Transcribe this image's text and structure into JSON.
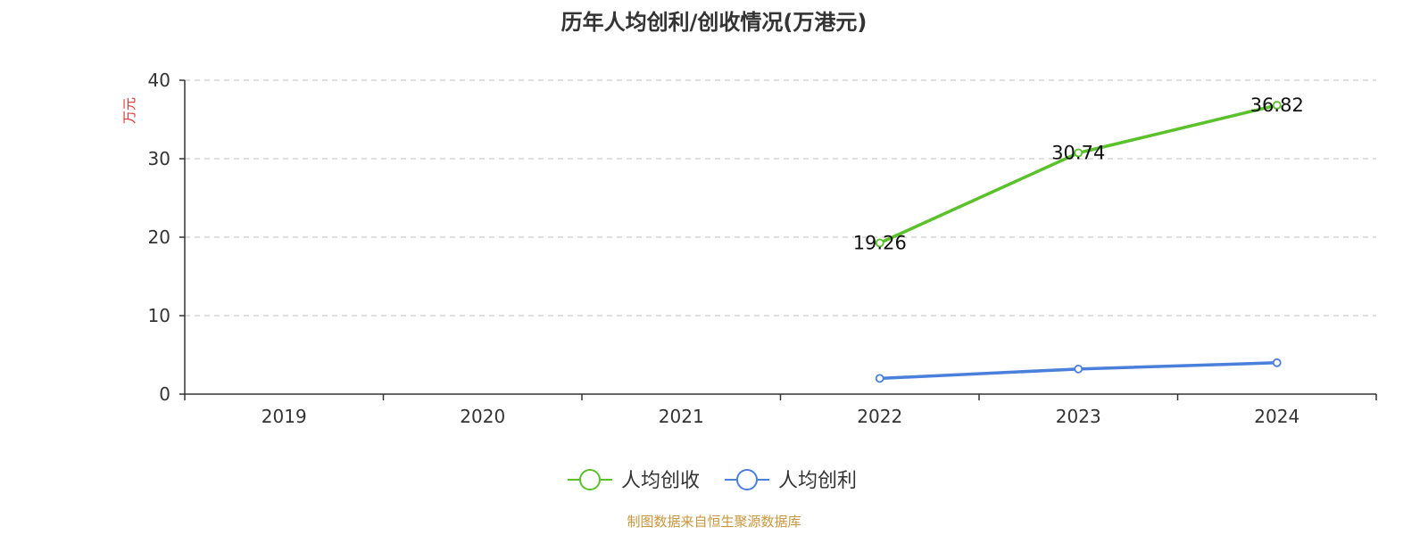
{
  "chart_data": {
    "type": "line",
    "title": "历年人均创利/创收情况(万港元)",
    "ylabel": "万元",
    "categories": [
      "2019",
      "2020",
      "2021",
      "2022",
      "2023",
      "2024"
    ],
    "ylim": [
      0,
      40
    ],
    "yticks": [
      0,
      10,
      20,
      30,
      40
    ],
    "grid": true,
    "legend_position": "bottom-center",
    "series": [
      {
        "name": "人均创收",
        "color": "#5ac12b",
        "values": [
          null,
          null,
          null,
          19.26,
          30.74,
          36.82
        ],
        "labels": [
          "",
          "",
          "",
          "19.26",
          "30.74",
          "36.82"
        ],
        "show_labels": true
      },
      {
        "name": "人均创利",
        "color": "#4a7fdc",
        "values": [
          null,
          null,
          null,
          2.0,
          3.2,
          4.0
        ],
        "show_labels": false
      }
    ],
    "source": "制图数据来自恒生聚源数据库"
  }
}
